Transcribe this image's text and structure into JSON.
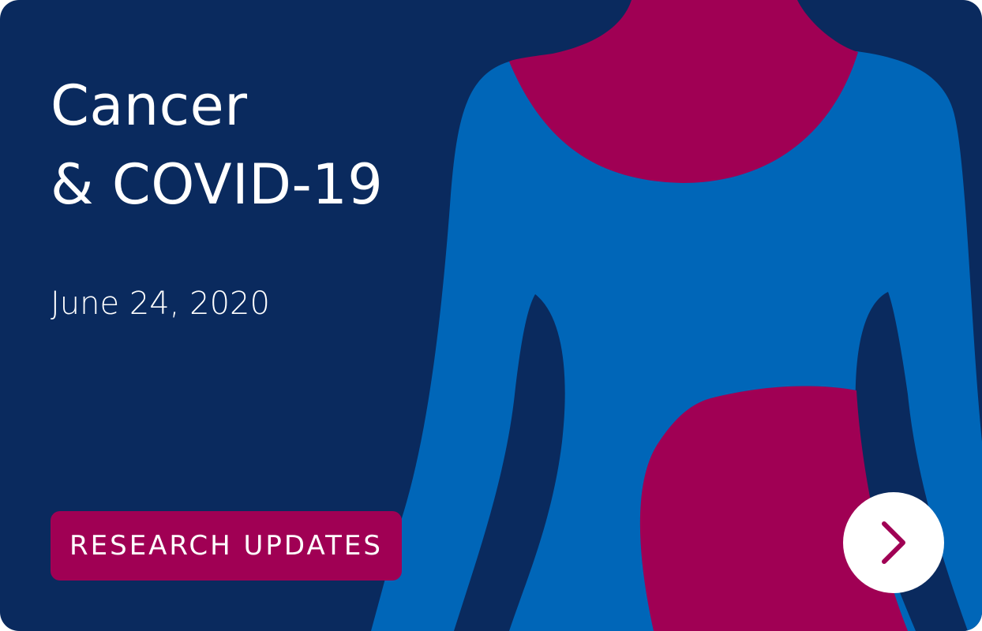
{
  "card": {
    "title_lines": [
      "Cancer",
      "& COVID-19"
    ],
    "date": "June 24, 2020",
    "category_tag": "RESEARCH UPDATES",
    "next_icon": "chevron-right-icon"
  },
  "colors": {
    "background": "#0a2a5e",
    "body": "#0066b8",
    "accent": "#a00054",
    "text": "#ffffff"
  }
}
